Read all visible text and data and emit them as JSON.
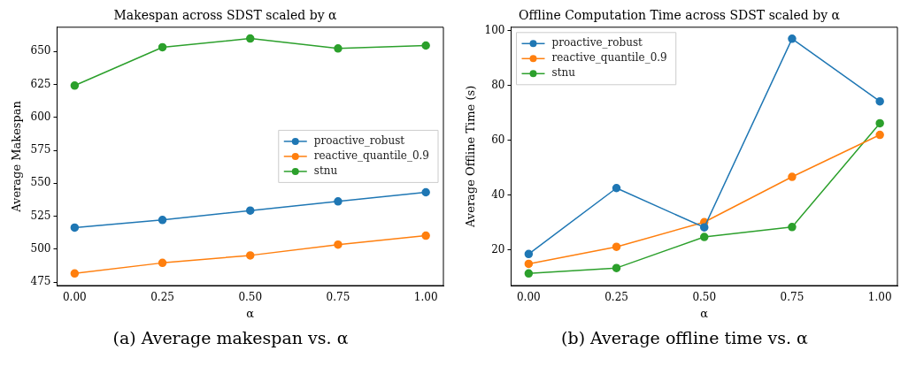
{
  "chart_data": [
    {
      "type": "line",
      "title": "Makespan across SDST scaled by α",
      "xlabel": "α",
      "ylabel": "Average Makespan",
      "x": [
        0,
        0.25,
        0.5,
        0.75,
        1
      ],
      "xlim": [
        -0.05,
        1.05
      ],
      "xticks": [
        {
          "value": 0,
          "label": "0.00"
        },
        {
          "value": 0.25,
          "label": "0.25"
        },
        {
          "value": 0.5,
          "label": "0.50"
        },
        {
          "value": 0.75,
          "label": "0.75"
        },
        {
          "value": 1,
          "label": "1.00"
        }
      ],
      "ylim": [
        472.4,
        668.5
      ],
      "yticks": [
        475,
        500,
        525,
        550,
        575,
        600,
        625,
        650
      ],
      "grid": false,
      "legend": "center right",
      "marker": "circle",
      "line_style": "solid",
      "annotations": [
        "(a) Average makespan vs. α"
      ],
      "series": [
        {
          "name": "proactive_robust",
          "color": "#1f77b4",
          "values": [
            516.4,
            522.2,
            529.3,
            536.3,
            543.2
          ]
        },
        {
          "name": "reactive_quantile_0.9",
          "color": "#ff7f0e",
          "values": [
            481.6,
            489.6,
            495.3,
            503.5,
            510.3
          ]
        },
        {
          "name": "stnu",
          "color": "#2ca02c",
          "values": [
            624.2,
            653.3,
            659.9,
            652.4,
            654.6
          ]
        }
      ]
    },
    {
      "type": "line",
      "title": "Offline Computation Time across SDST scaled by α",
      "xlabel": "α",
      "ylabel": "Average Offline Time (s)",
      "x": [
        0,
        0.25,
        0.5,
        0.75,
        1
      ],
      "xlim": [
        -0.05,
        1.05
      ],
      "xticks": [
        {
          "value": 0,
          "label": "0.00"
        },
        {
          "value": 0.25,
          "label": "0.25"
        },
        {
          "value": 0.5,
          "label": "0.50"
        },
        {
          "value": 0.75,
          "label": "0.75"
        },
        {
          "value": 1,
          "label": "1.00"
        }
      ],
      "ylim": [
        7.1,
        101.2
      ],
      "yticks": [
        20,
        40,
        60,
        80,
        100
      ],
      "grid": false,
      "legend": "top left",
      "marker": "circle",
      "line_style": "solid",
      "annotations": [
        "(b) Average offline time vs. α"
      ],
      "series": [
        {
          "name": "proactive_robust",
          "color": "#1f77b4",
          "values": [
            18.6,
            42.6,
            28.3,
            97.0,
            74.2
          ]
        },
        {
          "name": "reactive_quantile_0.9",
          "color": "#ff7f0e",
          "values": [
            15.0,
            21.2,
            30.2,
            46.7,
            62.0
          ]
        },
        {
          "name": "stnu",
          "color": "#2ca02c",
          "values": [
            11.5,
            13.5,
            24.8,
            28.4,
            66.2
          ]
        }
      ]
    }
  ]
}
